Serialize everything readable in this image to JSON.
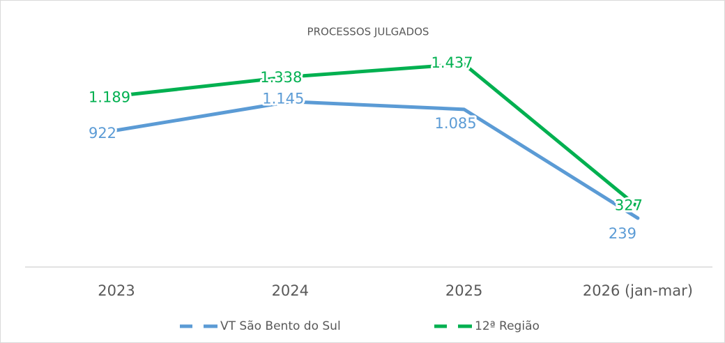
{
  "chart_data": {
    "type": "line",
    "title": "PROCESSOS JULGADOS",
    "categories": [
      "2023",
      "2024",
      "2025",
      "2026 (jan-mar)"
    ],
    "series": [
      {
        "name": "VT São Bento do Sul",
        "color": "#5b9bd5",
        "values": [
          922,
          1145,
          1085,
          239
        ],
        "value_labels": [
          "922",
          "1.145",
          "1.085",
          "239"
        ]
      },
      {
        "name": "12ª Região",
        "color": "#00b050",
        "values": [
          1189,
          1338,
          1437,
          327
        ],
        "value_labels": [
          "1.189",
          "1.338",
          "1.437",
          "327"
        ]
      }
    ]
  }
}
